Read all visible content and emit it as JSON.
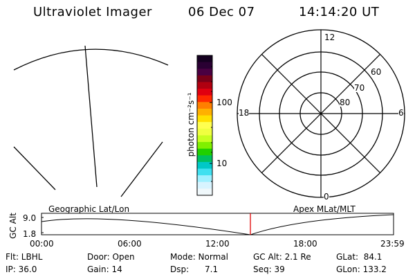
{
  "header": {
    "instrument": "Ultraviolet Imager",
    "date": "06 Dec 07",
    "time": "14:14:20 UT"
  },
  "colorbar": {
    "unit_label": "photon cm⁻²s⁻¹",
    "tick_labels": [
      "100",
      "10"
    ],
    "colors": [
      "#150020",
      "#2a0033",
      "#4a0042",
      "#7a0018",
      "#b00010",
      "#e00010",
      "#ff2a00",
      "#ff7f00",
      "#ffb000",
      "#ffe000",
      "#ffff50",
      "#f0ff40",
      "#c8ff20",
      "#80f000",
      "#20d000",
      "#00c060",
      "#00c8c8",
      "#40e0f0",
      "#a0f0ff",
      "#d8f4ff",
      "#f0f8fb"
    ]
  },
  "polar_plot": {
    "mlt_labels": [
      "12",
      "18",
      "6",
      "0"
    ],
    "lat_labels": [
      "60",
      "70",
      "80"
    ]
  },
  "timeline": {
    "ylabel": "GC Alt",
    "y_ticks": [
      "9.0",
      "1.8"
    ],
    "left_label": "Geographic Lat/Lon",
    "right_label": "Apex MLat/MLT",
    "x_ticks": [
      "00:00",
      "06:00",
      "12:00",
      "18:00",
      "23:59"
    ],
    "current_time_marker": "14:14:20",
    "marker_color": "#e00000"
  },
  "status": {
    "flt": "Flt: LBHL",
    "ip": "IP: 36.0",
    "door": "Door: Open",
    "gain": "Gain: 14",
    "mode": "Mode: Normal",
    "dsp": "Dsp:      7.1",
    "gc_alt": "GC Alt: 2.1 Re",
    "seq": "Seq: 39",
    "glat": "GLat:  84.1",
    "glon": "GLon: 133.2"
  }
}
